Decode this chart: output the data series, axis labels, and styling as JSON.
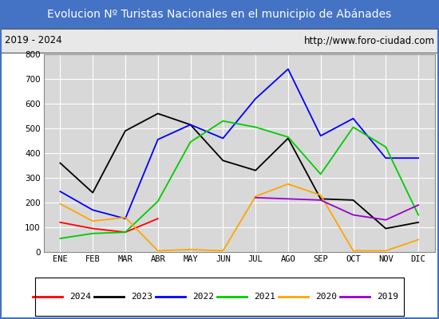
{
  "title": "Evolucion Nº Turistas Nacionales en el municipio de Abánades",
  "subtitle_left": "2019 - 2024",
  "subtitle_right": "http://www.foro-ciudad.com",
  "title_bg_color": "#4472c4",
  "title_text_color": "#ffffff",
  "subtitle_bg_color": "#e8e8e8",
  "plot_bg_color": "#d8d8d8",
  "months": [
    "ENE",
    "FEB",
    "MAR",
    "ABR",
    "MAY",
    "JUN",
    "JUL",
    "AGO",
    "SEP",
    "OCT",
    "NOV",
    "DIC"
  ],
  "series": {
    "2024": {
      "color": "#ff0000",
      "values": [
        120,
        95,
        80,
        135,
        null,
        null,
        null,
        null,
        null,
        null,
        null,
        null
      ]
    },
    "2023": {
      "color": "#000000",
      "values": [
        360,
        240,
        490,
        560,
        515,
        370,
        330,
        460,
        215,
        210,
        95,
        120
      ]
    },
    "2022": {
      "color": "#0000ff",
      "values": [
        245,
        170,
        135,
        455,
        515,
        460,
        620,
        740,
        470,
        540,
        380,
        380
      ]
    },
    "2021": {
      "color": "#00cc00",
      "values": [
        55,
        75,
        80,
        205,
        445,
        530,
        505,
        465,
        315,
        505,
        425,
        150
      ]
    },
    "2020": {
      "color": "#ffa500",
      "values": [
        195,
        125,
        140,
        5,
        10,
        5,
        225,
        275,
        230,
        5,
        5,
        50
      ]
    },
    "2019": {
      "color": "#9900cc",
      "values": [
        null,
        null,
        null,
        null,
        null,
        null,
        220,
        215,
        210,
        150,
        130,
        190
      ]
    }
  },
  "ylim": [
    0,
    800
  ],
  "yticks": [
    0,
    100,
    200,
    300,
    400,
    500,
    600,
    700,
    800
  ],
  "legend_order": [
    "2024",
    "2023",
    "2022",
    "2021",
    "2020",
    "2019"
  ],
  "border_color": "#4472c4",
  "grid_color": "#ffffff",
  "figure_bg_color": "#ffffff"
}
